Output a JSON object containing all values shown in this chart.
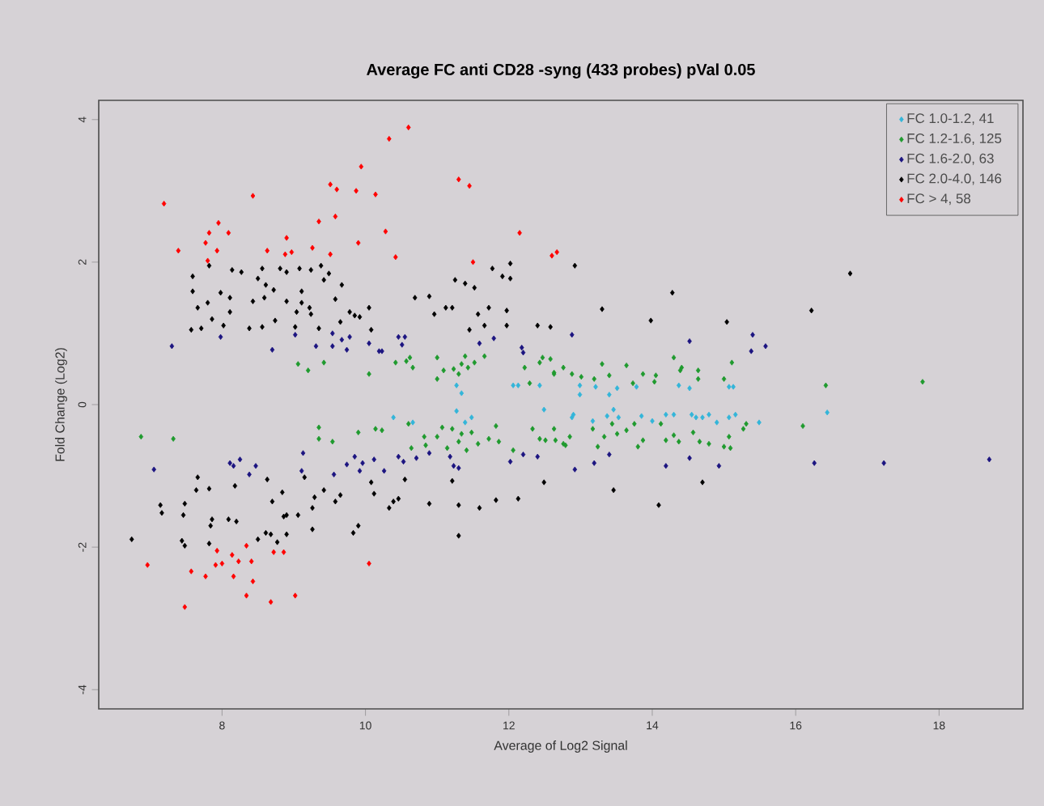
{
  "chart_data": {
    "type": "scatter",
    "title": "Average FC anti CD28 -syng (433 probes) pVal 0.05",
    "xlabel": "Average of Log2 Signal",
    "ylabel": "Fold Change (Log2)",
    "xlim": [
      6.28,
      19.17
    ],
    "ylim": [
      -4.27,
      4.27
    ],
    "xticks": [
      8,
      10,
      12,
      14,
      16,
      18
    ],
    "yticks": [
      -4,
      -2,
      0,
      2,
      4
    ],
    "marker": "diamond",
    "legend": "top right",
    "series": [
      {
        "name": "FC 1.0-1.2, 41",
        "color": "#33b5d9",
        "x": [
          12.99,
          12.99,
          13.21,
          13.51,
          13.78,
          14.37,
          14.52,
          15.07,
          15.13,
          12.9,
          12.88,
          13.17,
          13.37,
          13.46,
          13.53,
          13.85,
          14.0,
          14.19,
          14.3,
          14.55,
          14.61,
          14.7,
          14.79,
          14.9,
          15.07,
          15.16,
          15.49,
          16.44,
          11.27,
          11.34,
          12.06,
          12.13,
          12.43,
          12.49,
          10.39,
          10.66,
          11.27,
          11.39,
          11.48,
          13.4
        ],
        "values": [
          0.27,
          0.14,
          0.25,
          0.23,
          0.25,
          0.27,
          0.23,
          0.25,
          0.25,
          -0.14,
          -0.18,
          -0.23,
          -0.16,
          -0.07,
          -0.18,
          -0.16,
          -0.23,
          -0.14,
          -0.14,
          -0.14,
          -0.18,
          -0.18,
          -0.14,
          -0.25,
          -0.18,
          -0.14,
          -0.25,
          -0.11,
          0.27,
          0.16,
          0.27,
          0.27,
          0.27,
          -0.07,
          -0.18,
          -0.25,
          -0.09,
          -0.25,
          -0.18,
          0.14
        ]
      },
      {
        "name": "FC 1.2-1.6, 125",
        "color": "#1f9a2e",
        "x": [
          9.06,
          9.2,
          9.42,
          10.05,
          10.42,
          10.57,
          10.62,
          10.66,
          11.0,
          11.09,
          11.0,
          11.23,
          11.3,
          11.34,
          11.39,
          11.43,
          11.52,
          11.66,
          12.22,
          12.29,
          12.43,
          12.47,
          12.63,
          12.76,
          12.58,
          12.63,
          12.88,
          13.01,
          13.3,
          13.19,
          13.4,
          13.64,
          13.73,
          13.87,
          14.03,
          14.05,
          14.3,
          14.39,
          14.41,
          14.64,
          14.64,
          15.0,
          15.11,
          16.42,
          17.77,
          6.87,
          7.32,
          9.35,
          9.35,
          9.54,
          9.9,
          10.14,
          10.23,
          10.6,
          10.64,
          10.82,
          10.84,
          11.0,
          11.07,
          11.14,
          11.21,
          11.3,
          11.34,
          11.41,
          11.48,
          11.57,
          11.72,
          11.82,
          11.86,
          12.06,
          12.33,
          12.43,
          12.51,
          12.63,
          12.76,
          12.65,
          12.79,
          12.85,
          13.17,
          13.24,
          13.33,
          13.44,
          13.51,
          13.64,
          13.75,
          13.8,
          13.87,
          14.12,
          14.19,
          14.3,
          14.37,
          14.57,
          14.66,
          14.79,
          15.0,
          15.07,
          15.09,
          15.27,
          15.31,
          16.1
        ],
        "values": [
          0.57,
          0.48,
          0.59,
          0.43,
          0.59,
          0.61,
          0.66,
          0.52,
          0.66,
          0.48,
          0.36,
          0.5,
          0.43,
          0.57,
          0.68,
          0.52,
          0.59,
          0.68,
          0.52,
          0.3,
          0.59,
          0.66,
          0.43,
          0.52,
          0.64,
          0.45,
          0.43,
          0.39,
          0.57,
          0.36,
          0.41,
          0.55,
          0.3,
          0.43,
          0.32,
          0.41,
          0.66,
          0.48,
          0.52,
          0.48,
          0.36,
          0.36,
          0.59,
          0.27,
          0.32,
          -0.45,
          -0.48,
          -0.32,
          -0.48,
          -0.52,
          -0.39,
          -0.34,
          -0.36,
          -0.27,
          -0.61,
          -0.45,
          -0.57,
          -0.45,
          -0.32,
          -0.61,
          -0.34,
          -0.52,
          -0.41,
          -0.64,
          -0.39,
          -0.55,
          -0.48,
          -0.3,
          -0.52,
          -0.64,
          -0.34,
          -0.48,
          -0.5,
          -0.34,
          -0.55,
          -0.5,
          -0.57,
          -0.45,
          -0.34,
          -0.59,
          -0.45,
          -0.27,
          -0.41,
          -0.36,
          -0.27,
          -0.59,
          -0.5,
          -0.27,
          -0.5,
          -0.43,
          -0.52,
          -0.39,
          -0.52,
          -0.55,
          -0.59,
          -0.45,
          -0.61,
          -0.34,
          -0.27,
          -0.3
        ]
      },
      {
        "name": "FC 1.6-2.0, 63",
        "color": "#1c1480",
        "x": [
          7.3,
          7.98,
          8.7,
          9.02,
          9.31,
          9.54,
          9.54,
          9.67,
          9.74,
          9.78,
          10.05,
          10.19,
          10.23,
          10.46,
          10.55,
          10.51,
          11.59,
          11.79,
          12.18,
          12.2,
          12.88,
          14.52,
          15.4,
          15.38,
          15.58,
          7.05,
          8.11,
          8.16,
          8.25,
          8.38,
          8.47,
          9.13,
          9.11,
          9.56,
          9.74,
          9.85,
          9.92,
          9.96,
          10.12,
          10.26,
          10.46,
          10.53,
          10.71,
          10.89,
          11.18,
          11.23,
          11.3,
          12.02,
          12.2,
          12.4,
          12.92,
          13.19,
          13.4,
          14.19,
          14.52,
          14.93,
          16.26,
          17.23,
          18.7
        ],
        "values": [
          0.82,
          0.95,
          0.77,
          0.98,
          0.82,
          1.0,
          0.82,
          0.91,
          0.77,
          0.95,
          0.86,
          0.75,
          0.75,
          0.95,
          0.95,
          0.84,
          0.86,
          0.93,
          0.8,
          0.73,
          0.98,
          0.89,
          0.98,
          0.75,
          0.82,
          -0.91,
          -0.82,
          -0.86,
          -0.77,
          -0.98,
          -0.86,
          -0.68,
          -0.93,
          -0.98,
          -0.84,
          -0.73,
          -0.93,
          -0.82,
          -0.77,
          -0.93,
          -0.73,
          -0.8,
          -0.75,
          -0.68,
          -0.73,
          -0.86,
          -0.89,
          -0.8,
          -0.7,
          -0.73,
          -0.91,
          -0.82,
          -0.7,
          -0.86,
          -0.75,
          -0.86,
          -0.82,
          -0.82,
          -0.77
        ]
      },
      {
        "name": "FC 2.0-4.0, 146",
        "color": "#000000",
        "x": [
          7.59,
          7.59,
          7.66,
          7.57,
          7.71,
          7.82,
          7.8,
          7.86,
          7.98,
          8.02,
          8.11,
          8.11,
          8.14,
          8.27,
          8.38,
          8.43,
          8.5,
          8.56,
          8.61,
          8.59,
          8.56,
          8.74,
          8.72,
          8.81,
          8.9,
          8.9,
          9.02,
          9.04,
          9.08,
          9.11,
          9.11,
          9.22,
          9.24,
          9.24,
          9.38,
          9.35,
          9.42,
          9.49,
          9.58,
          9.67,
          9.65,
          9.78,
          9.85,
          9.92,
          10.05,
          10.08,
          10.69,
          10.89,
          10.96,
          11.12,
          11.21,
          11.25,
          11.39,
          11.52,
          11.45,
          11.57,
          11.66,
          11.72,
          11.77,
          11.91,
          12.02,
          12.02,
          11.97,
          11.97,
          12.4,
          12.58,
          12.92,
          13.3,
          13.98,
          14.28,
          15.04,
          16.22,
          16.76,
          6.74,
          7.14,
          7.16,
          7.44,
          7.48,
          7.46,
          7.48,
          7.64,
          7.66,
          7.82,
          7.82,
          7.84,
          7.86,
          8.09,
          8.2,
          8.18,
          8.5,
          8.61,
          8.68,
          8.77,
          8.63,
          8.7,
          8.84,
          8.86,
          8.9,
          8.9,
          9.06,
          9.15,
          9.26,
          9.26,
          9.29,
          9.42,
          9.58,
          9.65,
          9.83,
          9.9,
          10.08,
          10.12,
          10.33,
          10.39,
          10.46,
          10.55,
          10.89,
          11.21,
          11.3,
          11.3,
          11.59,
          11.82,
          12.13,
          12.49,
          13.46,
          14.09,
          14.7
        ],
        "values": [
          1.8,
          1.59,
          1.36,
          1.05,
          1.07,
          1.95,
          1.43,
          1.2,
          1.57,
          1.11,
          1.5,
          1.3,
          1.89,
          1.86,
          1.07,
          1.45,
          1.77,
          1.91,
          1.68,
          1.5,
          1.09,
          1.18,
          1.61,
          1.91,
          1.86,
          1.45,
          1.09,
          1.3,
          1.91,
          1.59,
          1.43,
          1.36,
          1.27,
          1.89,
          1.95,
          1.07,
          1.75,
          1.84,
          1.48,
          1.68,
          1.16,
          1.3,
          1.25,
          1.23,
          1.36,
          1.05,
          1.5,
          1.52,
          1.27,
          1.36,
          1.36,
          1.75,
          1.7,
          1.64,
          1.05,
          1.27,
          1.11,
          1.36,
          1.91,
          1.8,
          1.98,
          1.77,
          1.32,
          1.11,
          1.11,
          1.09,
          1.95,
          1.34,
          1.18,
          1.57,
          1.16,
          1.32,
          1.84,
          -1.89,
          -1.41,
          -1.52,
          -1.91,
          -1.98,
          -1.55,
          -1.39,
          -1.2,
          -1.02,
          -1.18,
          -1.95,
          -1.7,
          -1.61,
          -1.61,
          -1.64,
          -1.14,
          -1.89,
          -1.8,
          -1.82,
          -1.93,
          -1.05,
          -1.36,
          -1.23,
          -1.57,
          -1.55,
          -1.82,
          -1.55,
          -1.02,
          -1.75,
          -1.45,
          -1.3,
          -1.2,
          -1.36,
          -1.27,
          -1.8,
          -1.7,
          -1.09,
          -1.25,
          -1.45,
          -1.36,
          -1.32,
          -1.05,
          -1.39,
          -1.07,
          -1.41,
          -1.84,
          -1.45,
          -1.34,
          -1.32,
          -1.09,
          -1.2,
          -1.41,
          -1.09
        ]
      },
      {
        "name": "FC > 4, 58",
        "color": "#ff0000",
        "x": [
          7.19,
          7.39,
          7.77,
          7.82,
          7.95,
          8.09,
          7.93,
          7.8,
          8.43,
          8.63,
          8.9,
          8.88,
          8.97,
          9.26,
          9.35,
          9.51,
          9.6,
          9.58,
          9.51,
          9.87,
          9.94,
          9.9,
          10.14,
          10.28,
          10.33,
          10.6,
          10.42,
          11.3,
          11.45,
          11.5,
          12.15,
          12.6,
          12.67,
          6.96,
          7.48,
          7.57,
          7.77,
          7.93,
          7.91,
          8.0,
          8.14,
          8.16,
          8.23,
          8.34,
          8.41,
          8.43,
          8.34,
          8.68,
          8.72,
          8.86,
          9.02,
          10.05
        ],
        "values": [
          2.82,
          2.16,
          2.27,
          2.41,
          2.55,
          2.41,
          2.16,
          2.02,
          2.93,
          2.16,
          2.34,
          2.11,
          2.14,
          2.2,
          2.57,
          3.09,
          3.02,
          2.64,
          2.11,
          3.0,
          3.34,
          2.27,
          2.95,
          2.43,
          3.73,
          3.89,
          2.07,
          3.16,
          3.07,
          2.0,
          2.41,
          2.09,
          2.14,
          -2.25,
          -2.84,
          -2.34,
          -2.41,
          -2.05,
          -2.25,
          -2.23,
          -2.11,
          -2.41,
          -2.2,
          -1.98,
          -2.2,
          -2.48,
          -2.68,
          -2.77,
          -2.07,
          -2.07,
          -2.68,
          -2.23
        ]
      }
    ]
  }
}
